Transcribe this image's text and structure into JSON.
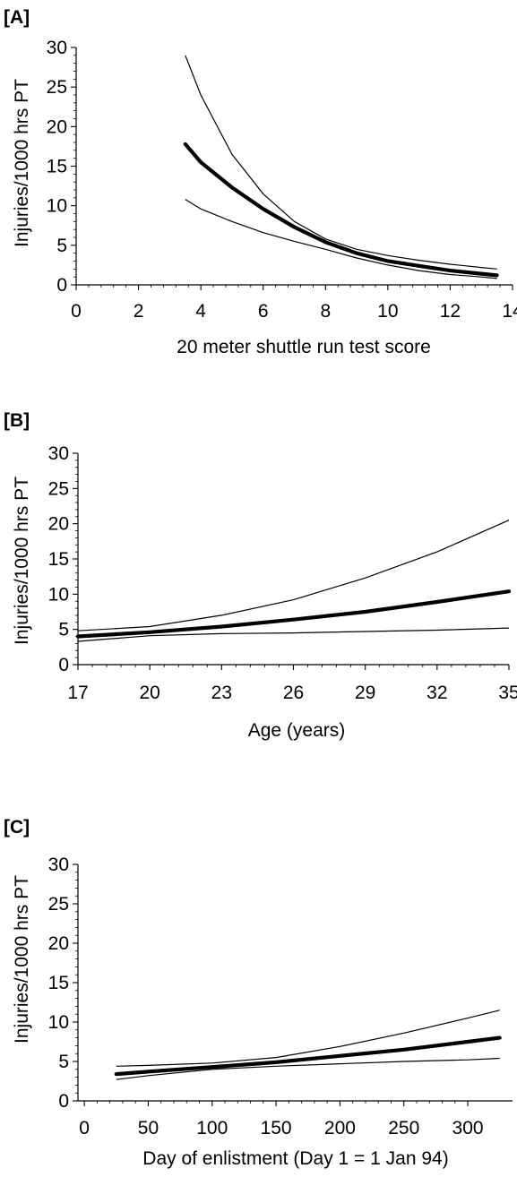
{
  "chart_data": [
    {
      "type": "line",
      "panel_label": "[A]",
      "title": "",
      "xlabel": "20 meter shuttle run test score",
      "ylabel": "Injuries/1000 hrs PT",
      "xlim": [
        0,
        14
      ],
      "ylim": [
        0,
        30
      ],
      "x_ticks": [
        0,
        2,
        4,
        6,
        8,
        10,
        12,
        14
      ],
      "y_ticks": [
        0,
        5,
        10,
        15,
        20,
        25,
        30
      ],
      "grid": false,
      "legend": "none",
      "series": [
        {
          "role": "estimate",
          "x": [
            3.5,
            4,
            5,
            6,
            7,
            8,
            9,
            10,
            11,
            12,
            13,
            13.5
          ],
          "values": [
            17.8,
            15.5,
            12.3,
            9.6,
            7.3,
            5.4,
            4.0,
            3.0,
            2.4,
            1.8,
            1.4,
            1.2
          ]
        },
        {
          "role": "upper_ci",
          "x": [
            3.5,
            4,
            5,
            6,
            7,
            8,
            9,
            10,
            11,
            12,
            13,
            13.5
          ],
          "values": [
            29.0,
            24.0,
            16.5,
            11.5,
            8.0,
            5.8,
            4.5,
            3.7,
            3.1,
            2.6,
            2.2,
            2.0
          ]
        },
        {
          "role": "lower_ci",
          "x": [
            3.5,
            4,
            5,
            6,
            7,
            8,
            9,
            10,
            11,
            12,
            13,
            13.5
          ],
          "values": [
            10.8,
            9.6,
            8.0,
            6.6,
            5.5,
            4.5,
            3.4,
            2.5,
            1.8,
            1.3,
            1.0,
            0.8
          ]
        }
      ]
    },
    {
      "type": "line",
      "panel_label": "[B]",
      "title": "",
      "xlabel": "Age (years)",
      "ylabel": "Injuries/1000 hrs PT",
      "xlim": [
        17,
        35
      ],
      "ylim": [
        0,
        30
      ],
      "x_ticks": [
        17,
        20,
        23,
        26,
        29,
        32,
        35
      ],
      "y_ticks": [
        0,
        5,
        10,
        15,
        20,
        25,
        30
      ],
      "grid": false,
      "legend": "none",
      "series": [
        {
          "role": "estimate",
          "x": [
            17,
            20,
            23,
            26,
            29,
            32,
            35
          ],
          "values": [
            4.0,
            4.6,
            5.4,
            6.4,
            7.5,
            8.9,
            10.4
          ]
        },
        {
          "role": "upper_ci",
          "x": [
            17,
            20,
            23,
            26,
            29,
            32,
            35
          ],
          "values": [
            4.8,
            5.4,
            7.0,
            9.2,
            12.3,
            16.0,
            20.5
          ]
        },
        {
          "role": "lower_ci",
          "x": [
            17,
            20,
            23,
            26,
            29,
            32,
            35
          ],
          "values": [
            3.3,
            4.1,
            4.4,
            4.5,
            4.7,
            4.9,
            5.2
          ]
        }
      ]
    },
    {
      "type": "line",
      "panel_label": "[C]",
      "title": "",
      "xlabel": "Day of enlistment (Day 1 = 1 Jan 94)",
      "ylabel": "Injuries/1000 hrs PT",
      "xlim": [
        -5,
        335
      ],
      "ylim": [
        0,
        30
      ],
      "x_ticks": [
        0,
        50,
        100,
        150,
        200,
        250,
        300
      ],
      "y_ticks": [
        0,
        5,
        10,
        15,
        20,
        25,
        30
      ],
      "grid": false,
      "legend": "none",
      "series": [
        {
          "role": "estimate",
          "x": [
            25,
            50,
            100,
            150,
            200,
            250,
            300,
            325
          ],
          "values": [
            3.4,
            3.7,
            4.3,
            4.9,
            5.7,
            6.5,
            7.5,
            8.0
          ]
        },
        {
          "role": "upper_ci",
          "x": [
            25,
            50,
            100,
            150,
            200,
            250,
            300,
            325
          ],
          "values": [
            4.4,
            4.5,
            4.8,
            5.5,
            6.9,
            8.6,
            10.5,
            11.5
          ]
        },
        {
          "role": "lower_ci",
          "x": [
            25,
            50,
            100,
            150,
            200,
            250,
            300,
            325
          ],
          "values": [
            2.7,
            3.2,
            4.0,
            4.4,
            4.7,
            5.0,
            5.2,
            5.4
          ]
        }
      ]
    }
  ]
}
